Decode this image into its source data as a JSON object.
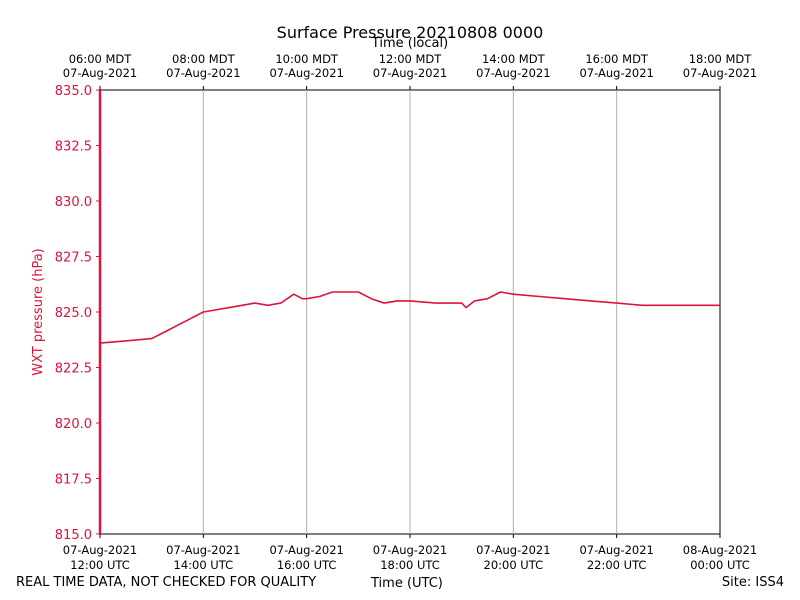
{
  "chart_data": {
    "type": "line",
    "title": "Surface Pressure 20210808 0000",
    "top_axis_label": "Time (local)",
    "xlabel": "Time (UTC)",
    "ylabel": "WXT pressure (hPa)",
    "ylim": [
      815.0,
      835.0
    ],
    "yticks": [
      815.0,
      817.5,
      820.0,
      822.5,
      825.0,
      827.5,
      830.0,
      832.5,
      835.0
    ],
    "ytick_labels": [
      "815.0",
      "817.5",
      "820.0",
      "822.5",
      "825.0",
      "827.5",
      "830.0",
      "832.5",
      "835.0"
    ],
    "xlim": [
      "2021-08-07 12:00 UTC",
      "2021-08-08 00:00 UTC"
    ],
    "xticks": [
      "2021-08-07 12:00",
      "2021-08-07 14:00",
      "2021-08-07 16:00",
      "2021-08-07 18:00",
      "2021-08-07 20:00",
      "2021-08-07 22:00",
      "2021-08-08 00:00"
    ],
    "xtick_labels": [
      [
        "07-Aug-2021",
        "12:00 UTC"
      ],
      [
        "07-Aug-2021",
        "14:00 UTC"
      ],
      [
        "07-Aug-2021",
        "16:00 UTC"
      ],
      [
        "07-Aug-2021",
        "18:00 UTC"
      ],
      [
        "07-Aug-2021",
        "20:00 UTC"
      ],
      [
        "07-Aug-2021",
        "22:00 UTC"
      ],
      [
        "08-Aug-2021",
        "00:00 UTC"
      ]
    ],
    "top_xtick_labels": [
      [
        "06:00 MDT",
        "07-Aug-2021"
      ],
      [
        "08:00 MDT",
        "07-Aug-2021"
      ],
      [
        "10:00 MDT",
        "07-Aug-2021"
      ],
      [
        "12:00 MDT",
        "07-Aug-2021"
      ],
      [
        "14:00 MDT",
        "07-Aug-2021"
      ],
      [
        "16:00 MDT",
        "07-Aug-2021"
      ],
      [
        "18:00 MDT",
        "07-Aug-2021"
      ]
    ],
    "grid": "vertical",
    "series": [
      {
        "color": "#dc143c",
        "x": [
          "2021-08-07 12:00",
          "2021-08-07 12:30",
          "2021-08-07 13:00",
          "2021-08-07 13:15",
          "2021-08-07 13:30",
          "2021-08-07 13:45",
          "2021-08-07 14:00",
          "2021-08-07 14:30",
          "2021-08-07 15:00",
          "2021-08-07 15:15",
          "2021-08-07 15:30",
          "2021-08-07 15:45",
          "2021-08-07 15:55",
          "2021-08-07 16:00",
          "2021-08-07 16:15",
          "2021-08-07 16:30",
          "2021-08-07 16:45",
          "2021-08-07 17:00",
          "2021-08-07 17:15",
          "2021-08-07 17:30",
          "2021-08-07 17:45",
          "2021-08-07 18:00",
          "2021-08-07 18:30",
          "2021-08-07 19:00",
          "2021-08-07 19:05",
          "2021-08-07 19:15",
          "2021-08-07 19:30",
          "2021-08-07 19:45",
          "2021-08-07 20:00",
          "2021-08-07 20:30",
          "2021-08-07 21:00",
          "2021-08-07 21:30",
          "2021-08-07 22:00",
          "2021-08-07 22:30",
          "2021-08-07 23:00",
          "2021-08-07 23:30",
          "2021-08-08 00:00"
        ],
        "y": [
          823.6,
          823.7,
          823.8,
          824.1,
          824.4,
          824.7,
          825.0,
          825.2,
          825.4,
          825.3,
          825.4,
          825.8,
          825.6,
          825.6,
          825.7,
          825.9,
          825.9,
          825.9,
          825.6,
          825.4,
          825.5,
          825.5,
          825.4,
          825.4,
          825.2,
          825.5,
          825.6,
          825.9,
          825.8,
          825.7,
          825.6,
          825.5,
          825.4,
          825.3,
          825.3,
          825.3,
          825.3
        ]
      }
    ]
  },
  "footer": {
    "disclaimer": "REAL TIME DATA, NOT CHECKED FOR QUALITY",
    "site": "Site: ISS4"
  }
}
